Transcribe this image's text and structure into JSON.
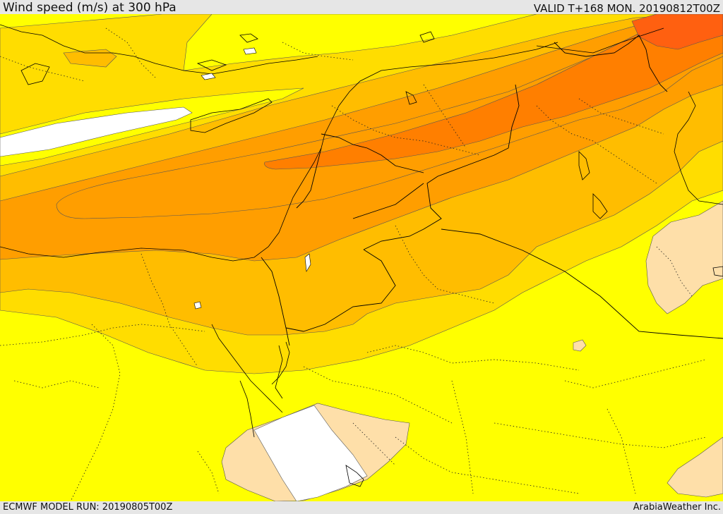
{
  "header": {
    "title": "Wind speed (m/s) at 300 hPa",
    "valid_time": "VALID T+168 MON. 20190812T00Z"
  },
  "footer": {
    "model_run": "ECMWF MODEL RUN: 20190805T00Z",
    "credit": "ArabiaWeather Inc."
  },
  "map": {
    "palette": {
      "white": "#ffffff",
      "tan": "#fedfa9",
      "yellow": "#ffff00",
      "gold": "#ffdd00",
      "amber": "#ffbd00",
      "orange": "#ff9e00",
      "dark_orange": "#ff7f00",
      "red_orange": "#ff6010",
      "border_color": "#000000"
    }
  }
}
